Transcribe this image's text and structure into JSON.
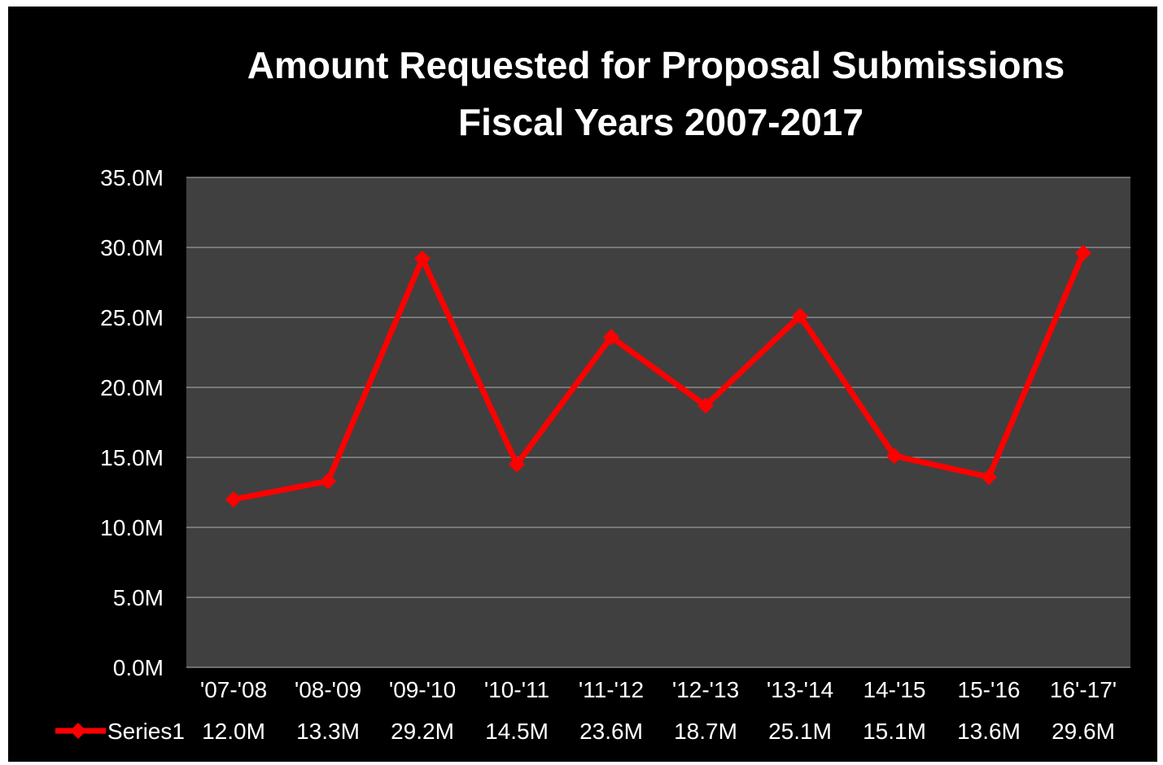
{
  "chart_data": {
    "type": "line",
    "title": "Amount Requested for Proposal Submissions",
    "subtitle": "Fiscal Years 2007-2017",
    "categories": [
      "'07-'08",
      "'08-'09",
      "'09-'10",
      "'10-'11",
      "'11-'12",
      "'12-'13",
      "'13-'14",
      "14-'15",
      "15-'16",
      "16'-17'"
    ],
    "series": [
      {
        "name": "Series1",
        "values": [
          12.0,
          13.3,
          29.2,
          14.5,
          23.6,
          18.7,
          25.1,
          15.1,
          13.6,
          29.6
        ],
        "labels": [
          "12.0M",
          "13.3M",
          "29.2M",
          "14.5M",
          "23.6M",
          "18.7M",
          "25.1M",
          "15.1M",
          "13.6M",
          "29.6M"
        ]
      }
    ],
    "ylim": [
      0,
      35
    ],
    "yticks": [
      "0.0M",
      "5.0M",
      "10.0M",
      "15.0M",
      "20.0M",
      "25.0M",
      "30.0M",
      "35.0M"
    ],
    "grid": true,
    "legend": "data-table-bottom",
    "colors": {
      "background": "#000000",
      "plot_area": "#404040",
      "gridline": "#9a9a9a",
      "series": "#ff0000",
      "text": "#ffffff"
    }
  }
}
